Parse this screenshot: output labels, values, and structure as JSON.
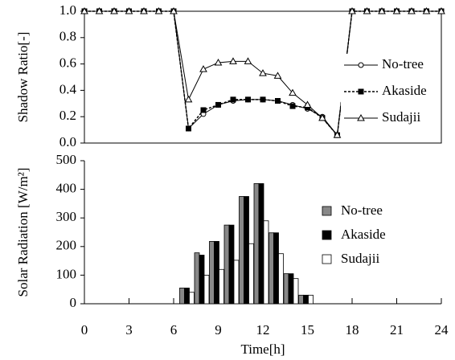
{
  "chart_data": [
    {
      "type": "line",
      "ylabel": "Shadow Ratio[-]",
      "x": [
        0,
        1,
        2,
        3,
        4,
        5,
        6,
        7,
        8,
        9,
        10,
        11,
        12,
        13,
        14,
        15,
        16,
        17,
        18,
        19,
        20,
        21,
        22,
        23,
        24
      ],
      "xlim": [
        0,
        24
      ],
      "ylim": [
        0,
        1
      ],
      "yticks": [
        {
          "value": 0,
          "label": "0.0"
        },
        0.2,
        0.4,
        0.6,
        0.8,
        {
          "value": 1,
          "label": "1.0"
        }
      ],
      "series": [
        {
          "name": "No-tree",
          "color": "#000000",
          "marker": "circle",
          "line_style": "solid",
          "values": [
            1,
            1,
            1,
            1,
            1,
            1,
            1,
            0.11,
            0.22,
            0.29,
            0.32,
            0.33,
            0.33,
            0.32,
            0.29,
            0.26,
            0.2,
            0.06,
            1,
            1,
            1,
            1,
            1,
            1,
            1
          ]
        },
        {
          "name": "Akaside",
          "color": "#000000",
          "marker": "square",
          "line_style": "dashed",
          "values": [
            1,
            1,
            1,
            1,
            1,
            1,
            1,
            0.11,
            0.25,
            0.29,
            0.33,
            0.33,
            0.33,
            0.32,
            0.28,
            0.27,
            0.19,
            0.06,
            1,
            1,
            1,
            1,
            1,
            1,
            1
          ]
        },
        {
          "name": "Sudajii",
          "color": "#000000",
          "marker": "triangle",
          "line_style": "solid",
          "values": [
            1,
            1,
            1,
            1,
            1,
            1,
            1,
            0.33,
            0.56,
            0.61,
            0.62,
            0.62,
            0.53,
            0.51,
            0.38,
            0.29,
            0.19,
            0.06,
            1,
            1,
            1,
            1,
            1,
            1,
            1
          ]
        }
      ]
    },
    {
      "type": "bar",
      "ylabel": "Solar Radiation [W/m²]",
      "xlabel": "Time[h]",
      "x": [
        7,
        8,
        9,
        10,
        11,
        12,
        13,
        14,
        15
      ],
      "xlim": [
        0,
        24
      ],
      "xticks": [
        0,
        3,
        6,
        9,
        12,
        15,
        18,
        21,
        24
      ],
      "ylim": [
        0,
        500
      ],
      "yticks": [
        0,
        100,
        200,
        300,
        400,
        500
      ],
      "series": [
        {
          "name": "No-tree",
          "color": "#888888",
          "values": [
            55,
            178,
            218,
            275,
            375,
            420,
            248,
            105,
            30
          ]
        },
        {
          "name": "Akaside",
          "color": "#000000",
          "values": [
            55,
            170,
            218,
            275,
            375,
            420,
            248,
            105,
            30
          ]
        },
        {
          "name": "Sudajii",
          "color": "#ffffff",
          "values": [
            40,
            100,
            120,
            152,
            210,
            290,
            175,
            88,
            30
          ]
        }
      ]
    }
  ]
}
